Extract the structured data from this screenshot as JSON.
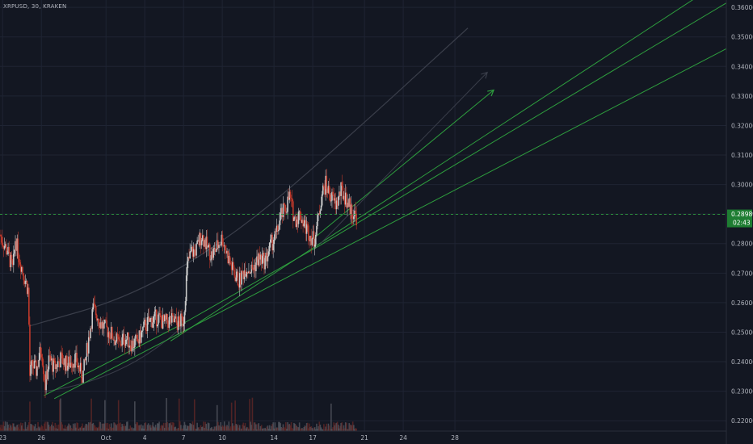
{
  "header": {
    "symbol": "XRPUSD",
    "interval": "30",
    "exchange": "KRAKEN",
    "separator": ", "
  },
  "colors": {
    "background": "#131722",
    "grid": "#1f2433",
    "axis_text": "#b2b5be",
    "candle_up": "#c8c8c8",
    "candle_down": "#c0392b",
    "trendline": "#2e9e3e",
    "curve": "#3a3e4a",
    "price_line": "#2e9e3e",
    "price_label_bg": "#1e7d32"
  },
  "chart_data": {
    "type": "candlestick",
    "title": "",
    "y_axis_labels": [
      "0.36000",
      "0.35000",
      "0.34000",
      "0.33000",
      "0.32000",
      "0.31000",
      "0.30000",
      "0.29000",
      "0.28000",
      "0.27000",
      "0.26000",
      "0.25000",
      "0.24000",
      "0.23000",
      "0.22000"
    ],
    "ylim": [
      0.2165,
      0.3625
    ],
    "x_axis_labels": [
      {
        "label": "23",
        "t": 0
      },
      {
        "label": "26",
        "t": 3
      },
      {
        "label": "Oct",
        "t": 8
      },
      {
        "label": "4",
        "t": 11
      },
      {
        "label": "7",
        "t": 14
      },
      {
        "label": "10",
        "t": 17
      },
      {
        "label": "14",
        "t": 21
      },
      {
        "label": "17",
        "t": 24
      },
      {
        "label": "21",
        "t": 28
      },
      {
        "label": "24",
        "t": 31
      },
      {
        "label": "28",
        "t": 35
      }
    ],
    "xlim": [
      -0.2,
      56
    ],
    "grid": true,
    "last_price": "0.28989",
    "countdown": "02:43",
    "price_path": [
      [
        -0.2,
        0.283
      ],
      [
        0.4,
        0.277
      ],
      [
        0.8,
        0.271
      ],
      [
        1.0,
        0.282
      ],
      [
        1.2,
        0.277
      ],
      [
        1.6,
        0.27
      ],
      [
        2.0,
        0.264
      ],
      [
        2.1,
        0.235
      ],
      [
        2.3,
        0.239
      ],
      [
        2.6,
        0.237
      ],
      [
        3.0,
        0.245
      ],
      [
        3.3,
        0.232
      ],
      [
        3.6,
        0.241
      ],
      [
        4.0,
        0.238
      ],
      [
        4.5,
        0.241
      ],
      [
        5.0,
        0.239
      ],
      [
        5.6,
        0.241
      ],
      [
        6.2,
        0.235
      ],
      [
        6.5,
        0.243
      ],
      [
        7.0,
        0.258
      ],
      [
        7.3,
        0.256
      ],
      [
        7.6,
        0.253
      ],
      [
        8.0,
        0.251
      ],
      [
        8.5,
        0.249
      ],
      [
        9.0,
        0.246
      ],
      [
        9.5,
        0.248
      ],
      [
        10.0,
        0.246
      ],
      [
        10.5,
        0.247
      ],
      [
        11.0,
        0.252
      ],
      [
        11.5,
        0.254
      ],
      [
        12.0,
        0.255
      ],
      [
        12.5,
        0.253
      ],
      [
        13.0,
        0.254
      ],
      [
        13.5,
        0.253
      ],
      [
        14.0,
        0.254
      ],
      [
        14.3,
        0.273
      ],
      [
        14.6,
        0.277
      ],
      [
        15.0,
        0.278
      ],
      [
        15.4,
        0.283
      ],
      [
        15.8,
        0.279
      ],
      [
        16.2,
        0.276
      ],
      [
        16.6,
        0.279
      ],
      [
        17.0,
        0.282
      ],
      [
        17.4,
        0.276
      ],
      [
        17.8,
        0.271
      ],
      [
        18.3,
        0.267
      ],
      [
        18.8,
        0.272
      ],
      [
        19.3,
        0.271
      ],
      [
        19.8,
        0.275
      ],
      [
        20.3,
        0.274
      ],
      [
        20.8,
        0.28
      ],
      [
        21.2,
        0.283
      ],
      [
        21.5,
        0.289
      ],
      [
        21.9,
        0.292
      ],
      [
        22.2,
        0.296
      ],
      [
        22.6,
        0.288
      ],
      [
        23.0,
        0.29
      ],
      [
        23.4,
        0.286
      ],
      [
        23.8,
        0.283
      ],
      [
        24.1,
        0.281
      ],
      [
        24.4,
        0.288
      ],
      [
        24.7,
        0.297
      ],
      [
        25.0,
        0.3
      ],
      [
        25.4,
        0.296
      ],
      [
        25.8,
        0.293
      ],
      [
        26.2,
        0.298
      ],
      [
        26.6,
        0.295
      ],
      [
        27.0,
        0.291
      ],
      [
        27.4,
        0.289
      ]
    ],
    "volume_profile": [
      0.03,
      0.05,
      0.04,
      0.06,
      0.03,
      0.04,
      0.05,
      0.04,
      0.03,
      0.05
    ],
    "trendlines": [
      {
        "from": [
          3.2,
          0.2285
        ],
        "to": [
          14.0,
          0.253
        ]
      },
      {
        "from": [
          14.0,
          0.253
        ],
        "to": [
          24.6,
          0.2795
        ]
      },
      {
        "from": [
          24.6,
          0.2795
        ],
        "to": [
          56,
          0.3615
        ]
      },
      {
        "from": [
          4.0,
          0.2275
        ],
        "to": [
          56,
          0.346
        ]
      },
      {
        "from": [
          13.0,
          0.247
        ],
        "to": [
          56,
          0.37
        ]
      }
    ],
    "arrows": [
      {
        "from": [
          24.0,
          0.2815
        ],
        "to": [
          38.0,
          0.332
        ]
      },
      {
        "from": [
          24.6,
          0.28
        ],
        "to": [
          37.5,
          0.338
        ],
        "curve": true
      }
    ],
    "curve": {
      "points": [
        [
          2.0,
          0.252
        ],
        [
          10.0,
          0.262
        ],
        [
          18.0,
          0.283
        ],
        [
          26.0,
          0.313
        ],
        [
          36.0,
          0.353
        ]
      ]
    }
  }
}
